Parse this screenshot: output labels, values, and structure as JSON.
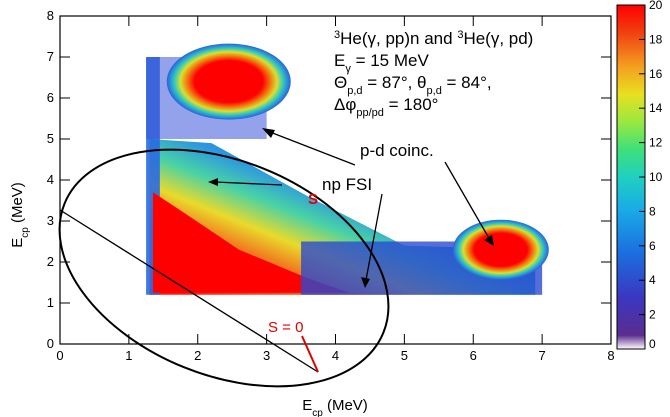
{
  "chart_data": {
    "type": "heatmap",
    "xlabel": "E",
    "xlabel_sub": "cp",
    "xlabel_unit": " (MeV)",
    "ylabel": "E",
    "ylabel_sub": "cp",
    "ylabel_unit": " (MeV)",
    "xlim": [
      0,
      8
    ],
    "ylim": [
      0,
      8
    ],
    "x_ticks": [
      "0",
      "1",
      "2",
      "3",
      "4",
      "5",
      "6",
      "7",
      "8"
    ],
    "y_ticks": [
      "0",
      "1",
      "2",
      "3",
      "4",
      "5",
      "6",
      "7",
      "8"
    ],
    "colorbar": {
      "range": [
        0,
        20
      ],
      "ticks": [
        "0",
        "2",
        "4",
        "6",
        "8",
        "10",
        "12",
        "14",
        "16",
        "18",
        "20"
      ],
      "colors": [
        "#ffffff",
        "#5b2d8f",
        "#3a37c0",
        "#1b6fe0",
        "#19a9e8",
        "#20d0c0",
        "#3ee07a",
        "#9ae840",
        "#e8e020",
        "#f4a020",
        "#f04010",
        "#ff0000"
      ]
    },
    "regions": [
      {
        "name": "p-d coincidence (upper)",
        "x_center": 2.45,
        "y_center": 6.4
      },
      {
        "name": "p-d coincidence (right)",
        "x_center": 6.4,
        "y_center": 2.3
      },
      {
        "name": "np FSI band",
        "x_range": [
          1.3,
          5.5
        ],
        "y_range": [
          1.2,
          5.0
        ]
      }
    ],
    "legend_lines": [
      {
        "pre": "3",
        "text": "He(γ, pp)n and ",
        "pre2": "3",
        "text2": "He(γ, pd)"
      },
      {
        "main": "E",
        "sub": "γ",
        "rest": " = 15 MeV"
      },
      {
        "main": "Θ",
        "sub": "p,d",
        "mid": " = 87°, θ",
        "sub2": "p,d",
        "rest": " = 84°,"
      },
      {
        "main": "Δφ",
        "sub": "pp/pd",
        "rest": " = 180°"
      }
    ],
    "annotations": {
      "pd_coinc": "p-d coinc.",
      "np_fsi": "np FSI",
      "s_label": "S",
      "s_zero": "S = 0"
    }
  }
}
